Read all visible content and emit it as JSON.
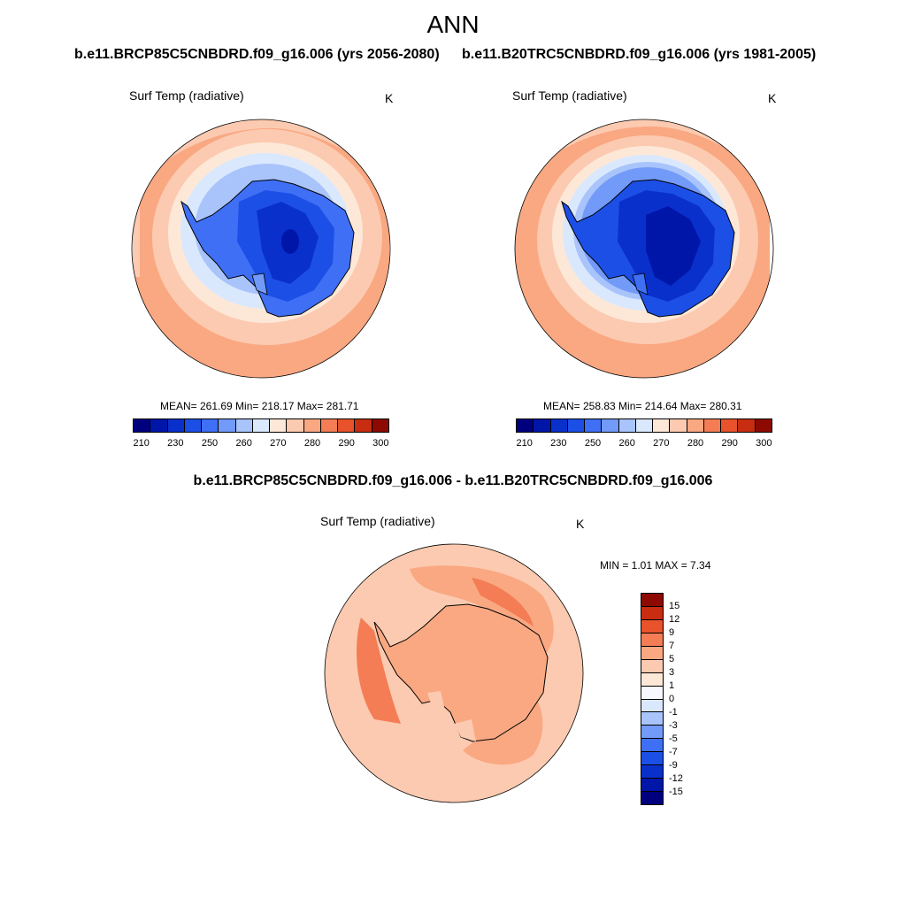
{
  "header": {
    "title": "ANN",
    "case1": "b.e11.BRCP85C5CNBDRD.f09_g16.006 (yrs 2056-2080)",
    "case2": "b.e11.B20TRC5CNBDRD.f09_g16.006 (yrs 1981-2005)",
    "diff": "b.e11.BRCP85C5CNBDRD.f09_g16.006 - b.e11.B20TRC5CNBDRD.f09_g16.006"
  },
  "panels": [
    {
      "variable": "Surf Temp (radiative)",
      "units": "K",
      "stats": "MEAN= 261.69  Min= 218.17  Max= 281.71"
    },
    {
      "variable": "Surf Temp (radiative)",
      "units": "K",
      "stats": "MEAN= 258.83  Min= 214.64  Max= 280.31"
    },
    {
      "variable": "Surf Temp (radiative)",
      "units": "K",
      "stats": "MIN =   1.01 MAX =   7.34"
    }
  ],
  "colorbar_main": {
    "colors": [
      "#00007f",
      "#0016a8",
      "#0a30cc",
      "#1c4fe6",
      "#3f6ff5",
      "#729af8",
      "#a9c4fb",
      "#dae8fd",
      "#fde8d8",
      "#fccab0",
      "#f9a882",
      "#f47d55",
      "#e8532c",
      "#c82d12",
      "#8c0a02"
    ],
    "ticks": [
      "210",
      "230",
      "250",
      "260",
      "270",
      "280",
      "290",
      "300"
    ],
    "tick_slots": [
      1,
      3,
      5,
      7,
      9,
      11,
      13,
      15
    ]
  },
  "colorbar_diff": {
    "colors": [
      "#00007f",
      "#0016a8",
      "#0a30cc",
      "#1c4fe6",
      "#3f6ff5",
      "#729af8",
      "#a9c4fb",
      "#dae8fd",
      "#f7f7ff",
      "#fde8d8",
      "#fccab0",
      "#f9a882",
      "#f47d55",
      "#e8532c",
      "#c82d12",
      "#8c0a02"
    ],
    "ticks": [
      "-15",
      "-12",
      "-9",
      "-7",
      "-5",
      "-3",
      "-1",
      "0",
      "1",
      "3",
      "5",
      "7",
      "9",
      "12",
      "15"
    ]
  }
}
